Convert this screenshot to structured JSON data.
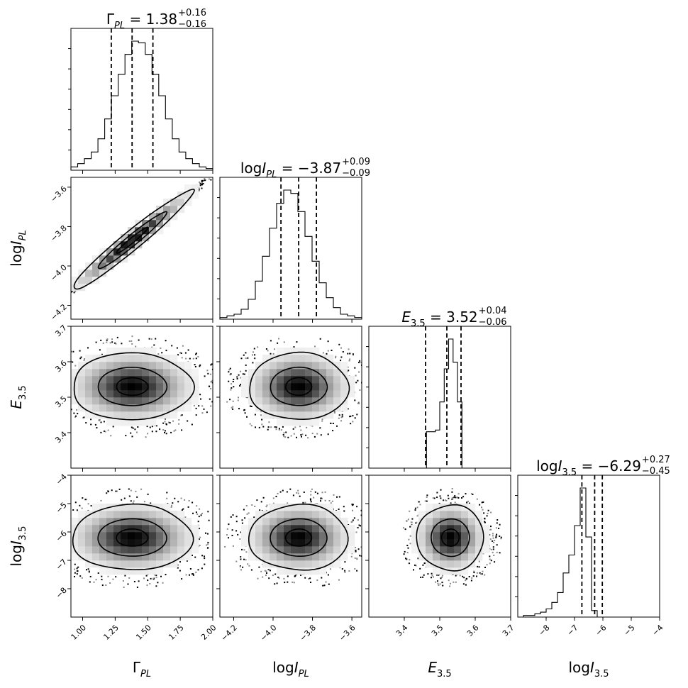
{
  "chart_data": {
    "type": "corner",
    "parameters": [
      {
        "id": "gamma",
        "label": "Γ",
        "sub": "PL",
        "sub_italic": true,
        "var_italic": false,
        "prefix": ""
      },
      {
        "id": "logipl",
        "label": "I",
        "sub": "PL",
        "sub_italic": true,
        "var_italic": true,
        "prefix": "log"
      },
      {
        "id": "e35",
        "label": "E",
        "sub": "3.5",
        "sub_italic": false,
        "var_italic": true,
        "prefix": ""
      },
      {
        "id": "logi35",
        "label": "I",
        "sub": "3.5",
        "sub_italic": false,
        "var_italic": true,
        "prefix": "log"
      }
    ],
    "ranges": [
      [
        0.91,
        2.0
      ],
      [
        -4.27,
        -3.55
      ],
      [
        3.3,
        3.7
      ],
      [
        -9.0,
        -4.0
      ]
    ],
    "ticks": [
      {
        "values": [
          1.0,
          1.25,
          1.5,
          1.75,
          2.0
        ],
        "labels": [
          "1.00",
          "1.25",
          "1.50",
          "1.75",
          "2.00"
        ]
      },
      {
        "values": [
          -4.2,
          -4.0,
          -3.8,
          -3.6
        ],
        "labels": [
          "−4.2",
          "−4.0",
          "−3.8",
          "−3.6"
        ]
      },
      {
        "values": [
          3.4,
          3.5,
          3.6,
          3.7
        ],
        "labels": [
          "3.4",
          "3.5",
          "3.6",
          "3.7"
        ]
      },
      {
        "values": [
          -8,
          -7,
          -6,
          -5,
          -4
        ],
        "labels": [
          "−8",
          "−7",
          "−6",
          "−5",
          "−4"
        ]
      }
    ],
    "y_ticks": [
      null,
      {
        "values": [
          -4.2,
          -4.0,
          -3.8,
          -3.6
        ],
        "labels": [
          "−4.2",
          "−4.0",
          "−3.8",
          "−3.6"
        ]
      },
      {
        "values": [
          3.4,
          3.5,
          3.6,
          3.7
        ],
        "labels": [
          "3.4",
          "3.5",
          "3.6",
          "3.7"
        ]
      },
      {
        "values": [
          -8,
          -7,
          -6,
          -5,
          -4
        ],
        "labels": [
          "−8",
          "−7",
          "−6",
          "−5",
          "−4"
        ]
      }
    ],
    "titles": [
      {
        "value": "1.38",
        "plus": "+0.16",
        "minus": "−0.16"
      },
      {
        "value": "−3.87",
        "plus": "+0.09",
        "minus": "−0.09"
      },
      {
        "value": "3.52",
        "plus": "+0.04",
        "minus": "−0.06"
      },
      {
        "value": "−6.29",
        "plus": "+0.27",
        "minus": "−0.45"
      }
    ],
    "quantiles": [
      [
        1.22,
        1.38,
        1.54
      ],
      [
        -3.96,
        -3.87,
        -3.78
      ],
      [
        3.46,
        3.52,
        3.56
      ],
      [
        -6.74,
        -6.29,
        -6.02
      ]
    ],
    "histograms": [
      {
        "counts": [
          2,
          4,
          7,
          11,
          19,
          31,
          45,
          58,
          70,
          78,
          77,
          70,
          58,
          45,
          31,
          19,
          11,
          7,
          4,
          2,
          1
        ]
      },
      {
        "counts": [
          1,
          2,
          3,
          6,
          12,
          23,
          38,
          55,
          70,
          78,
          76,
          65,
          50,
          35,
          22,
          13,
          7,
          3,
          2,
          1
        ]
      },
      {
        "counts": [
          0,
          0,
          0,
          0,
          0,
          0,
          0,
          0,
          0,
          0,
          0,
          0,
          0,
          22,
          22,
          23,
          40,
          60,
          78,
          64,
          40,
          0,
          0,
          0,
          0,
          0,
          0,
          0,
          0,
          0,
          0,
          0
        ]
      },
      {
        "counts": [
          0,
          1,
          1,
          2,
          3,
          5,
          9,
          15,
          27,
          38,
          56,
          79,
          49,
          4,
          0,
          0,
          0,
          0,
          0,
          0,
          0,
          0,
          0,
          0,
          0
        ]
      }
    ]
  }
}
